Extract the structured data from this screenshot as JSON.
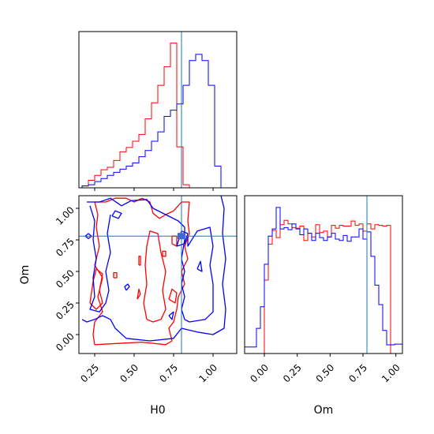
{
  "chart_data": [
    {
      "type": "histogram",
      "panel": "H0 marginal",
      "xlim": [
        0.15,
        1.15
      ],
      "bins": [
        0.17,
        0.21,
        0.25,
        0.29,
        0.33,
        0.37,
        0.41,
        0.45,
        0.49,
        0.53,
        0.57,
        0.61,
        0.65,
        0.69,
        0.73,
        0.77,
        0.81,
        0.85,
        0.89,
        0.93,
        0.97,
        1.01,
        1.05,
        1.09
      ],
      "series": [
        {
          "color": "#ff0000",
          "values": [
            0.3,
            1.2,
            2.0,
            2.9,
            3.3,
            4.4,
            5.8,
            6.5,
            7.5,
            8.6,
            11.1,
            13.7,
            16.5,
            19.5,
            23.3,
            6.6,
            0.5,
            0,
            0,
            0,
            0,
            0,
            0
          ]
        },
        {
          "color": "#0000ff",
          "values": [
            0.3,
            0.5,
            1.0,
            1.5,
            2.0,
            2.5,
            3.0,
            3.5,
            4.0,
            5.0,
            6.0,
            7.5,
            9.0,
            11.5,
            12.5,
            13.5,
            16.5,
            20.5,
            21.5,
            20.5,
            16.5,
            3.5,
            0.0
          ]
        }
      ],
      "truth_x": 0.8,
      "xticks": [
        0.25,
        0.5,
        0.75,
        1.0
      ]
    },
    {
      "type": "contour",
      "panel": "H0 vs Om",
      "xlabel": "H0",
      "ylabel": "Om",
      "xlim": [
        0.15,
        1.15
      ],
      "ylim": [
        -0.15,
        1.1
      ],
      "xticks": [
        0.25,
        0.5,
        0.75,
        1.0
      ],
      "yticks": [
        0.0,
        0.25,
        0.5,
        0.75,
        1.0
      ],
      "xtick_labels": [
        "0.25",
        "0.50",
        "0.75",
        "1.00"
      ],
      "ytick_labels": [
        "0.00",
        "0.25",
        "0.50",
        "0.75",
        "1.00"
      ],
      "truth": [
        0.8,
        0.78
      ],
      "series": [
        {
          "color": "#ff0000",
          "contours": [
            [
              [
                0.25,
                1.05
              ],
              [
                0.32,
                1.05
              ],
              [
                0.38,
                1.08
              ],
              [
                0.45,
                1.08
              ],
              [
                0.5,
                1.05
              ],
              [
                0.55,
                1.08
              ],
              [
                0.6,
                1.05
              ],
              [
                0.62,
                0.96
              ],
              [
                0.66,
                0.92
              ],
              [
                0.7,
                0.95
              ],
              [
                0.75,
                0.98
              ],
              [
                0.8,
                1.05
              ],
              [
                0.85,
                1.05
              ],
              [
                0.84,
                0.9
              ],
              [
                0.85,
                0.8
              ],
              [
                0.82,
                0.7
              ],
              [
                0.84,
                0.6
              ],
              [
                0.8,
                0.5
              ],
              [
                0.82,
                0.4
              ],
              [
                0.78,
                0.3
              ],
              [
                0.77,
                0.2
              ],
              [
                0.75,
                0.1
              ],
              [
                0.72,
                0.05
              ],
              [
                0.74,
                -0.05
              ],
              [
                0.7,
                -0.08
              ],
              [
                0.55,
                -0.06
              ],
              [
                0.4,
                -0.07
              ],
              [
                0.25,
                -0.08
              ],
              [
                0.24,
                0.0
              ],
              [
                0.25,
                0.1
              ],
              [
                0.3,
                0.18
              ],
              [
                0.27,
                0.3
              ],
              [
                0.3,
                0.45
              ],
              [
                0.25,
                0.55
              ],
              [
                0.28,
                0.7
              ],
              [
                0.26,
                0.85
              ],
              [
                0.27,
                0.95
              ],
              [
                0.25,
                1.05
              ]
            ],
            [
              [
                0.58,
                0.12
              ],
              [
                0.62,
                0.1
              ],
              [
                0.67,
                0.12
              ],
              [
                0.7,
                0.2
              ],
              [
                0.68,
                0.35
              ],
              [
                0.7,
                0.5
              ],
              [
                0.67,
                0.65
              ],
              [
                0.65,
                0.8
              ],
              [
                0.6,
                0.82
              ],
              [
                0.58,
                0.7
              ],
              [
                0.57,
                0.55
              ],
              [
                0.58,
                0.4
              ],
              [
                0.56,
                0.25
              ],
              [
                0.58,
                0.12
              ]
            ],
            [
              [
                0.22,
                0.25
              ],
              [
                0.26,
                0.2
              ],
              [
                0.3,
                0.25
              ],
              [
                0.28,
                0.35
              ],
              [
                0.3,
                0.48
              ],
              [
                0.26,
                0.52
              ],
              [
                0.24,
                0.42
              ],
              [
                0.22,
                0.25
              ]
            ],
            [
              [
                0.52,
                0.28
              ],
              [
                0.54,
                0.32
              ],
              [
                0.53,
                0.36
              ],
              [
                0.52,
                0.28
              ]
            ],
            [
              [
                0.72,
                0.28
              ],
              [
                0.76,
                0.25
              ],
              [
                0.77,
                0.33
              ],
              [
                0.74,
                0.36
              ],
              [
                0.72,
                0.28
              ]
            ],
            [
              [
                0.74,
                0.72
              ],
              [
                0.77,
                0.7
              ],
              [
                0.77,
                0.78
              ],
              [
                0.74,
                0.78
              ],
              [
                0.74,
                0.72
              ]
            ],
            [
              [
                0.37,
                0.45
              ],
              [
                0.39,
                0.45
              ],
              [
                0.39,
                0.49
              ],
              [
                0.37,
                0.49
              ],
              [
                0.37,
                0.45
              ]
            ],
            [
              [
                0.53,
                0.55
              ],
              [
                0.54,
                0.55
              ],
              [
                0.54,
                0.62
              ],
              [
                0.53,
                0.62
              ],
              [
                0.53,
                0.55
              ]
            ],
            [
              [
                0.68,
                0.62
              ],
              [
                0.7,
                0.62
              ],
              [
                0.7,
                0.66
              ],
              [
                0.68,
                0.66
              ],
              [
                0.68,
                0.62
              ]
            ]
          ]
        },
        {
          "color": "#0000ff",
          "contours": [
            [
              [
                0.17,
                0.12
              ],
              [
                0.2,
                0.1
              ],
              [
                0.25,
                0.12
              ],
              [
                0.3,
                0.15
              ],
              [
                0.35,
                0.12
              ],
              [
                0.38,
                0.05
              ],
              [
                0.45,
                -0.03
              ],
              [
                0.6,
                -0.05
              ],
              [
                0.75,
                -0.03
              ],
              [
                0.8,
                0.05
              ],
              [
                0.9,
                0.02
              ],
              [
                1.0,
                0.0
              ],
              [
                1.07,
                0.05
              ],
              [
                1.08,
                0.2
              ],
              [
                1.06,
                0.4
              ],
              [
                1.08,
                0.6
              ],
              [
                1.06,
                0.8
              ],
              [
                1.07,
                1.0
              ],
              [
                1.05,
                1.1
              ]
            ],
            [
              [
                0.2,
                1.05
              ],
              [
                0.28,
                1.05
              ],
              [
                0.35,
                1.08
              ],
              [
                0.42,
                1.02
              ],
              [
                0.48,
                1.06
              ],
              [
                0.58,
                1.07
              ],
              [
                0.62,
                1.0
              ],
              [
                0.7,
                0.95
              ],
              [
                0.78,
                0.9
              ],
              [
                0.82,
                0.85
              ],
              [
                0.82,
                0.75
              ],
              [
                0.8,
                0.6
              ],
              [
                0.82,
                0.5
              ],
              [
                0.8,
                0.4
              ],
              [
                0.82,
                0.3
              ],
              [
                0.8,
                0.2
              ],
              [
                0.82,
                0.12
              ],
              [
                0.85,
                0.1
              ],
              [
                0.95,
                0.12
              ],
              [
                1.0,
                0.18
              ],
              [
                1.0,
                0.4
              ],
              [
                0.98,
                0.55
              ],
              [
                1.0,
                0.7
              ],
              [
                0.98,
                0.85
              ],
              [
                0.9,
                0.82
              ],
              [
                0.84,
                0.7
              ],
              [
                0.84,
                0.78
              ]
            ],
            [
              [
                0.22,
                1.02
              ],
              [
                0.25,
                0.9
              ],
              [
                0.24,
                0.75
              ],
              [
                0.26,
                0.6
              ],
              [
                0.24,
                0.45
              ],
              [
                0.25,
                0.3
              ],
              [
                0.22,
                0.2
              ],
              [
                0.28,
                0.18
              ],
              [
                0.32,
                0.25
              ],
              [
                0.34,
                0.35
              ],
              [
                0.32,
                0.5
              ],
              [
                0.35,
                0.65
              ],
              [
                0.33,
                0.8
              ],
              [
                0.35,
                0.95
              ]
            ],
            [
              [
                0.36,
                0.94
              ],
              [
                0.4,
                0.92
              ],
              [
                0.42,
                0.96
              ],
              [
                0.38,
                0.98
              ],
              [
                0.36,
                0.94
              ]
            ],
            [
              [
                0.19,
                0.78
              ],
              [
                0.21,
                0.8
              ],
              [
                0.23,
                0.78
              ],
              [
                0.21,
                0.76
              ],
              [
                0.19,
                0.78
              ]
            ],
            [
              [
                0.45,
                0.35
              ],
              [
                0.47,
                0.38
              ],
              [
                0.46,
                0.4
              ],
              [
                0.44,
                0.38
              ],
              [
                0.45,
                0.35
              ]
            ],
            [
              [
                0.72,
                0.15
              ],
              [
                0.74,
                0.12
              ],
              [
                0.75,
                0.18
              ],
              [
                0.72,
                0.15
              ]
            ],
            [
              [
                0.9,
                0.52
              ],
              [
                0.93,
                0.5
              ],
              [
                0.92,
                0.58
              ],
              [
                0.9,
                0.52
              ]
            ],
            [
              [
                0.77,
                0.7
              ],
              [
                0.82,
                0.72
              ],
              [
                0.84,
                0.8
              ],
              [
                0.8,
                0.82
              ],
              [
                0.77,
                0.7
              ]
            ]
          ]
        }
      ]
    },
    {
      "type": "histogram",
      "panel": "Om marginal",
      "xlabel": "Om",
      "xlim": [
        -0.15,
        1.05
      ],
      "xticks": [
        0.0,
        0.25,
        0.5,
        0.75,
        1.0
      ],
      "xtick_labels": [
        "0.00",
        "0.25",
        "0.50",
        "0.75",
        "1.00"
      ],
      "bins": [
        -0.15,
        -0.12,
        -0.09,
        -0.06,
        -0.03,
        0.0,
        0.03,
        0.06,
        0.09,
        0.12,
        0.15,
        0.18,
        0.21,
        0.24,
        0.27,
        0.3,
        0.33,
        0.36,
        0.39,
        0.42,
        0.45,
        0.48,
        0.51,
        0.54,
        0.57,
        0.6,
        0.63,
        0.66,
        0.69,
        0.72,
        0.75,
        0.78,
        0.81,
        0.84,
        0.87,
        0.9,
        0.93,
        0.96,
        0.99,
        1.02,
        1.05
      ],
      "series": [
        {
          "color": "#ff0000",
          "values": [
            0,
            0,
            0,
            0,
            0,
            10.2,
            15.2,
            17.1,
            16.1,
            17.9,
            18.5,
            18.0,
            17.5,
            17.4,
            17.7,
            15.7,
            16.7,
            16.2,
            17.9,
            16.8,
            17.0,
            16.2,
            17.8,
            17.4,
            17.8,
            17.7,
            17.7,
            18.4,
            17.8,
            18.0,
            17.0,
            18.0,
            17.3,
            17.9,
            17.8,
            17.7,
            17.8,
            0,
            0,
            0
          ]
        },
        {
          "color": "#0000ff",
          "values": [
            0.9,
            0.9,
            0.9,
            3.5,
            6.5,
            12.4,
            16.3,
            17.3,
            20.3,
            17.3,
            17.5,
            17.2,
            18.0,
            17.3,
            16.5,
            17.3,
            16.7,
            15.7,
            16.7,
            16.1,
            15.7,
            16.2,
            16.7,
            15.9,
            15.7,
            16.4,
            15.6,
            16.2,
            16.2,
            17.3,
            15.9,
            16.9,
            13.5,
            9.5,
            6.8,
            3.2,
            1.2,
            1.2,
            1.3,
            1.3
          ]
        }
      ],
      "truth_x": 0.78
    }
  ]
}
